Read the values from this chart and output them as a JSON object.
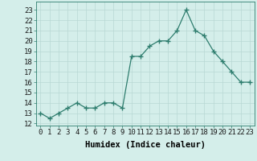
{
  "x": [
    0,
    1,
    2,
    3,
    4,
    5,
    6,
    7,
    8,
    9,
    10,
    11,
    12,
    13,
    14,
    15,
    16,
    17,
    18,
    19,
    20,
    21,
    22,
    23
  ],
  "y": [
    13,
    12.5,
    13,
    13.5,
    14,
    13.5,
    13.5,
    14,
    14,
    13.5,
    18.5,
    18.5,
    19.5,
    20,
    20,
    21,
    23,
    21,
    20.5,
    19,
    18,
    17,
    16,
    16
  ],
  "line_color": "#2e7d6e",
  "marker": "+",
  "marker_size": 4,
  "bg_color": "#d4eeea",
  "grid_color": "#b8d8d4",
  "xlabel": "Humidex (Indice chaleur)",
  "xlabel_fontsize": 7.5,
  "yticks": [
    12,
    13,
    14,
    15,
    16,
    17,
    18,
    19,
    20,
    21,
    22,
    23
  ],
  "xlim": [
    -0.5,
    23.5
  ],
  "ylim": [
    11.8,
    23.8
  ],
  "tick_fontsize": 6.5,
  "lw": 0.9
}
